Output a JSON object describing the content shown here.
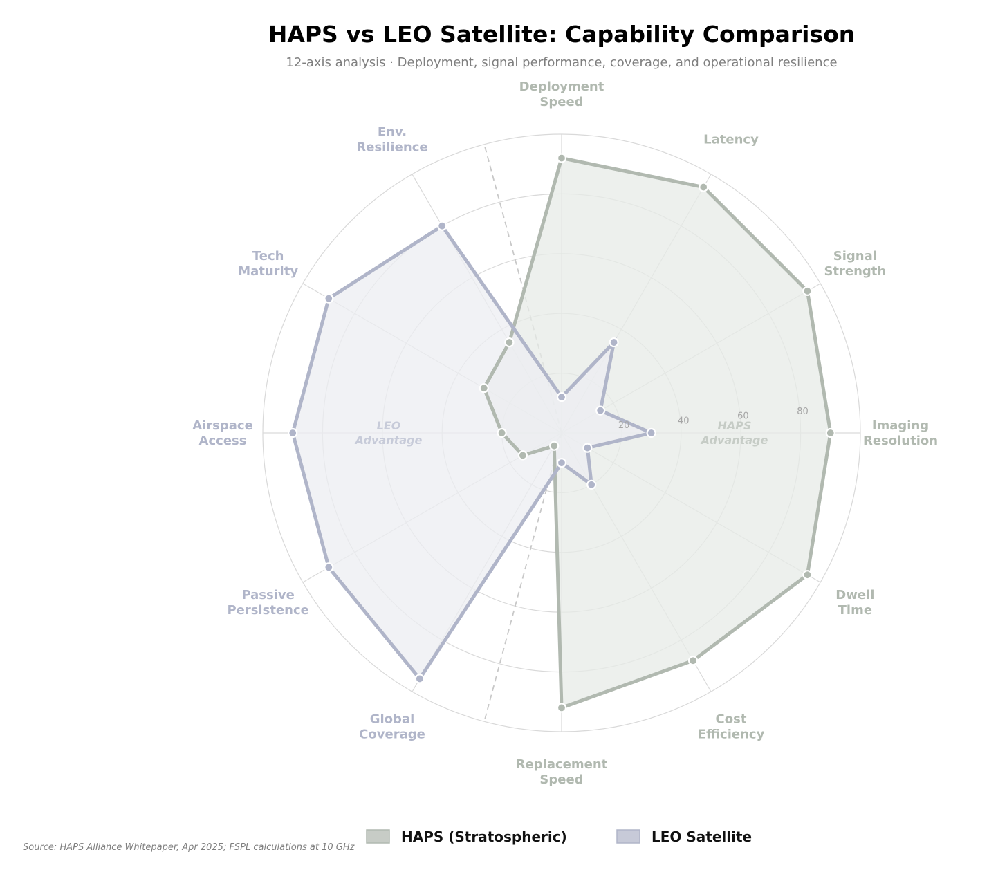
{
  "colors": {
    "haps": "#b1b9b0",
    "leo": "#b0b5c9",
    "haps_fill": "#e7ebe7",
    "leo_fill": "#ecedf2",
    "grid": "#d9d9d9",
    "divider": "#c8c8c8"
  },
  "chart_data": {
    "type": "radar",
    "title": "HAPS vs LEO Satellite: Capability Comparison",
    "subtitle": "12-axis analysis  ·  Deployment, signal performance, coverage, and operational resilience",
    "axes": [
      [
        "Deployment",
        "Speed"
      ],
      [
        "Latency"
      ],
      [
        "Signal",
        "Strength"
      ],
      [
        "Imaging",
        "Resolution"
      ],
      [
        "Dwell",
        "Time"
      ],
      [
        "Cost",
        "Efficiency"
      ],
      [
        "Replacement",
        "Speed"
      ],
      [
        "Global",
        "Coverage"
      ],
      [
        "Passive",
        "Persistence"
      ],
      [
        "Airspace",
        "Access"
      ],
      [
        "Tech",
        "Maturity"
      ],
      [
        "Env.",
        "Resilience"
      ]
    ],
    "axis_side": [
      "haps",
      "haps",
      "haps",
      "haps",
      "haps",
      "haps",
      "haps",
      "leo",
      "leo",
      "leo",
      "leo",
      "leo"
    ],
    "rlim": [
      0,
      100
    ],
    "rticks": [
      20,
      40,
      60,
      80
    ],
    "series": [
      {
        "name": "HAPS (Stratospheric)",
        "values": [
          92,
          95,
          95,
          90,
          95,
          88,
          92,
          5,
          15,
          20,
          30,
          35
        ]
      },
      {
        "name": "LEO Satellite",
        "values": [
          12,
          35,
          15,
          30,
          10,
          20,
          10,
          95,
          90,
          90,
          90,
          80
        ]
      }
    ],
    "region_labels": [
      {
        "lines": [
          "HAPS",
          "Advantage"
        ],
        "side": "right"
      },
      {
        "lines": [
          "LEO",
          "Advantage"
        ],
        "side": "left"
      }
    ],
    "legend": [
      "HAPS (Stratospheric)",
      "LEO Satellite"
    ]
  },
  "source": "Source: HAPS Alliance Whitepaper, Apr 2025; FSPL calculations at 10 GHz"
}
